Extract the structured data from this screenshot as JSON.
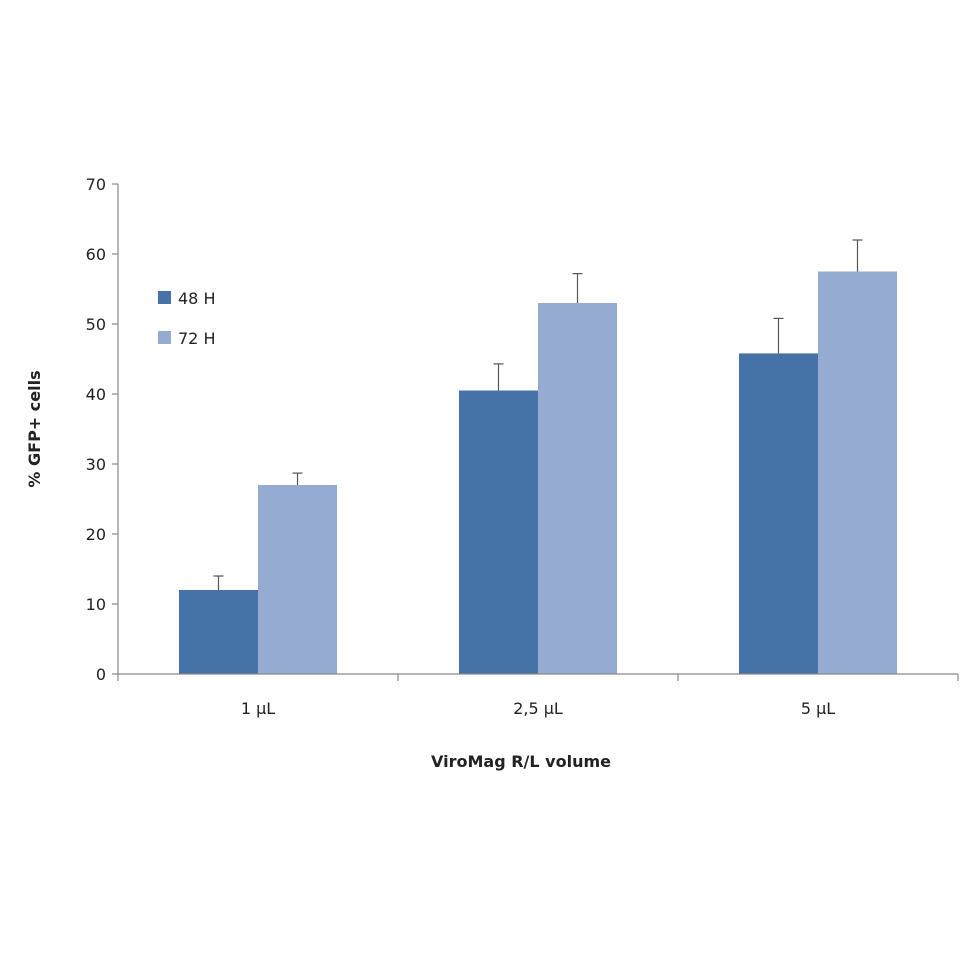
{
  "chart_data": {
    "type": "bar",
    "title": "",
    "xlabel": "ViroMag R/L volume",
    "ylabel": "% GFP+ cells",
    "categories": [
      "1 µL",
      "2,5 µL",
      "5 µL"
    ],
    "ylim": [
      0,
      70
    ],
    "yticks": [
      0,
      10,
      20,
      30,
      40,
      50,
      60,
      70
    ],
    "grid": false,
    "legend_position": "top-left",
    "series": [
      {
        "name": "48 H",
        "values": [
          12,
          40.5,
          45.8
        ],
        "errors": [
          2,
          3.8,
          5
        ],
        "color": "#4572a7"
      },
      {
        "name": "72 H",
        "values": [
          27,
          53,
          57.5
        ],
        "errors": [
          1.7,
          4.2,
          4.5
        ],
        "color": "#95abd2"
      }
    ]
  }
}
